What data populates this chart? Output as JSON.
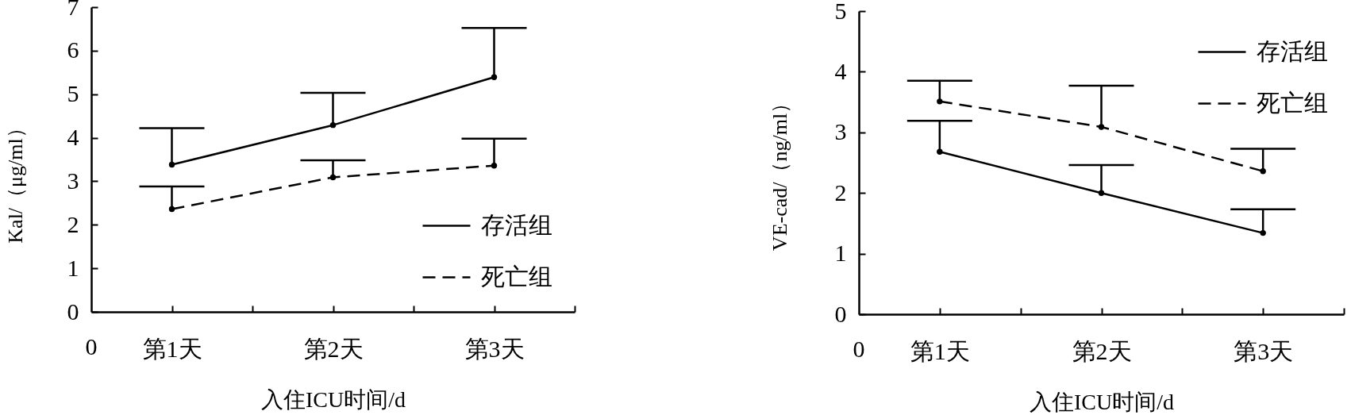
{
  "chart_data": [
    {
      "type": "line",
      "xlabel": "入住ICU时间/d",
      "ylabel": "Kal/（μg/ml）",
      "categories": [
        "第1天",
        "第2天",
        "第3天"
      ],
      "ylim": [
        0,
        7
      ],
      "yticks": [
        0,
        1,
        2,
        3,
        4,
        5,
        6,
        7
      ],
      "series": [
        {
          "name": "存活组",
          "color": "#000000",
          "line_style": "solid",
          "values": [
            3.38,
            4.29,
            5.39
          ],
          "errors": [
            [
              3.38,
              4.22
            ],
            [
              4.29,
              5.03
            ],
            [
              5.39,
              6.52
            ]
          ]
        },
        {
          "name": "死亡组",
          "color": "#000000",
          "line_style": "dashed",
          "values": [
            2.36,
            3.09,
            3.36
          ],
          "errors": [
            [
              2.36,
              2.88
            ],
            [
              3.09,
              3.48
            ],
            [
              3.36,
              3.98
            ]
          ]
        }
      ],
      "annotations": [
        "0"
      ],
      "marker": "circle",
      "legend": "bottom right"
    },
    {
      "type": "line",
      "xlabel": "入住ICU时间/d",
      "ylabel": "VE-cad/（ng/ml）",
      "categories": [
        "第1天",
        "第2天",
        "第3天"
      ],
      "ylim": [
        0,
        5
      ],
      "yticks": [
        0,
        1,
        2,
        3,
        4,
        5
      ],
      "series": [
        {
          "name": "存活组",
          "color": "#000000",
          "line_style": "solid",
          "values": [
            2.68,
            2.0,
            1.34
          ],
          "errors": [
            [
              2.68,
              3.19
            ],
            [
              2.0,
              2.46
            ],
            [
              1.34,
              1.73
            ]
          ]
        },
        {
          "name": "死亡组",
          "color": "#000000",
          "line_style": "dashed",
          "values": [
            3.51,
            3.09,
            2.36
          ],
          "errors": [
            [
              3.51,
              3.85
            ],
            [
              3.09,
              3.77
            ],
            [
              2.36,
              2.73
            ]
          ]
        }
      ],
      "annotations": [
        "0"
      ],
      "marker": "circle",
      "legend": "top right"
    }
  ]
}
